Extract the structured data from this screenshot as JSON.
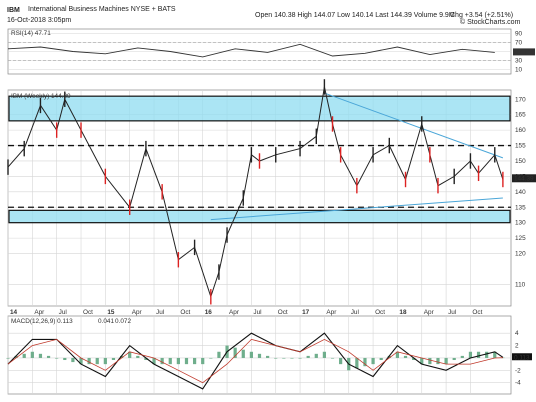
{
  "header": {
    "symbol": "IBM",
    "name": "International Business Machines  NYSE + BATS",
    "date": "16-Oct-2018 3:05pm",
    "ohlc": "Open 140.38  High 144.07  Low 140.14  Last 144.39  Volume 9.9M",
    "change": "Chg +3.54 (+2.51%)",
    "source": "© StockCharts.com"
  },
  "chart_data": [
    {
      "type": "line",
      "panel": "RSI",
      "legend": "RSI(14) 47.71",
      "ylim": [
        0,
        100
      ],
      "y_ticks": [
        "30",
        "50",
        "70",
        "90",
        "10"
      ],
      "levels": [
        30,
        70
      ],
      "current": "47.71",
      "x": [
        0,
        4,
        8,
        12,
        16,
        20,
        24,
        28,
        32,
        36,
        40,
        44,
        48,
        52,
        56,
        60
      ],
      "values": [
        56,
        60,
        50,
        45,
        58,
        50,
        38,
        56,
        48,
        66,
        40,
        46,
        60,
        43,
        55,
        48
      ]
    },
    {
      "type": "line",
      "panel": "Price",
      "legend": "IBM (Weekly) 144.39",
      "ylim": [
        103,
        173
      ],
      "x_labels": [
        "14",
        "Apr",
        "Jul",
        "Oct",
        "15",
        "Apr",
        "Jul",
        "Oct",
        "16",
        "Apr",
        "Jul",
        "Oct",
        "17",
        "Apr",
        "Jul",
        "Oct",
        "18",
        "Apr",
        "Jul",
        "Oct"
      ],
      "x_label_months": [
        0,
        3,
        6,
        9,
        12,
        15,
        18,
        21,
        24,
        27,
        30,
        33,
        36,
        39,
        42,
        45,
        48,
        51,
        54,
        57
      ],
      "y_ticks": [
        "110",
        "120",
        "125",
        "130",
        "135",
        "140",
        "145",
        "150",
        "155",
        "160",
        "165",
        "170"
      ],
      "last_price": "144.39",
      "zones": [
        [
          163,
          171
        ],
        [
          130,
          134
        ]
      ],
      "dashed_levels": [
        155,
        135
      ],
      "trendlines": [
        {
          "from": [
            39,
            172
          ],
          "to": [
            61,
            151
          ]
        },
        {
          "from": [
            25,
            131
          ],
          "to": [
            61,
            138
          ]
        }
      ],
      "x": [
        0,
        2,
        4,
        6,
        7,
        9,
        12,
        15,
        17,
        19,
        21,
        23,
        25,
        26,
        27,
        29,
        30,
        31,
        33,
        36,
        38,
        39,
        40,
        41,
        43,
        45,
        47,
        49,
        51,
        52,
        53,
        55,
        57,
        58,
        60,
        61
      ],
      "values": [
        148,
        154,
        168,
        160,
        170,
        160,
        145,
        135,
        154,
        140,
        118,
        122,
        106,
        114,
        126,
        138,
        152,
        150,
        152,
        154,
        158,
        174,
        162,
        152,
        142,
        152,
        155,
        144,
        162,
        152,
        142,
        145,
        150,
        146,
        152,
        144
      ]
    },
    {
      "type": "line",
      "panel": "MACD",
      "legend_macd": "MACD(12,26,9) 0.113",
      "legend_signal": "0.041",
      "legend_hist": "0.072",
      "ylim": [
        -5.5,
        5
      ],
      "y_ticks": [
        "4",
        "2",
        "0",
        "-2",
        "-4"
      ],
      "current": "0.113",
      "series": [
        {
          "name": "MACD(12,26,9)",
          "x": [
            0,
            3,
            6,
            9,
            12,
            15,
            18,
            21,
            24,
            27,
            30,
            33,
            36,
            39,
            42,
            45,
            48,
            51,
            54,
            57,
            60,
            61
          ],
          "values": [
            -1,
            3,
            3,
            -1,
            -3,
            2,
            -1,
            -3,
            -5,
            1,
            4,
            2,
            1,
            4,
            -1,
            -3,
            2,
            -1,
            -2,
            0,
            1,
            0.113
          ]
        },
        {
          "name": "signal",
          "x": [
            0,
            3,
            6,
            9,
            12,
            15,
            18,
            21,
            24,
            27,
            30,
            33,
            36,
            39,
            42,
            45,
            48,
            51,
            54,
            57,
            60,
            61
          ],
          "values": [
            -1,
            2,
            3,
            0,
            -2,
            1,
            0,
            -2,
            -4,
            -1,
            3,
            2,
            1,
            3,
            1,
            -2,
            1,
            0,
            -1,
            -1,
            0,
            0.041
          ]
        }
      ],
      "histogram": {
        "x": [
          0,
          3,
          6,
          9,
          12,
          15,
          18,
          21,
          24,
          27,
          30,
          33,
          36,
          39,
          42,
          45,
          48,
          51,
          54,
          57,
          60,
          61
        ],
        "values": [
          0,
          1,
          0,
          -1,
          -1,
          1,
          -1,
          -1,
          -1,
          2,
          1,
          0,
          0,
          1,
          -2,
          -1,
          1,
          -1,
          -1,
          1,
          1,
          0.072
        ]
      }
    }
  ]
}
